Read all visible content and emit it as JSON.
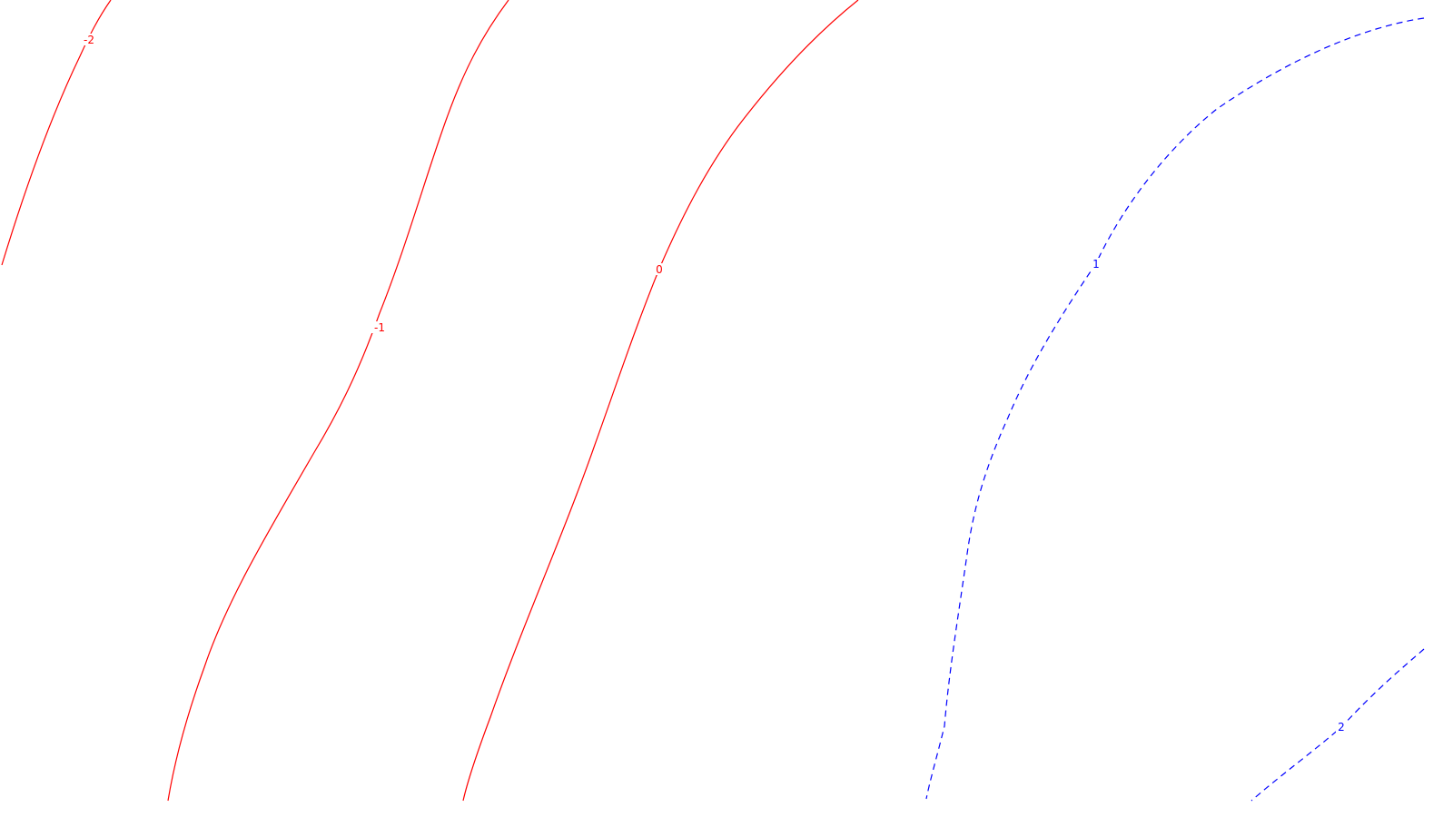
{
  "chart_data": {
    "type": "contour",
    "title": "",
    "xlabel": "",
    "ylabel": "",
    "grid": false,
    "legend": "none",
    "colors": {
      "negative": "#ff0000",
      "positive": "#0000ff",
      "background": "#ffffff"
    },
    "levels": [
      {
        "value": -2,
        "label": "-2",
        "color": "#ff0000",
        "style": "solid"
      },
      {
        "value": -1,
        "label": "-1",
        "color": "#ff0000",
        "style": "solid"
      },
      {
        "value": 0,
        "label": "0",
        "color": "#ff0000",
        "style": "solid"
      },
      {
        "value": 1,
        "label": "1",
        "color": "#0000ff",
        "style": "dashed"
      },
      {
        "value": 2,
        "label": "2",
        "color": "#0000ff",
        "style": "dashed"
      }
    ]
  }
}
